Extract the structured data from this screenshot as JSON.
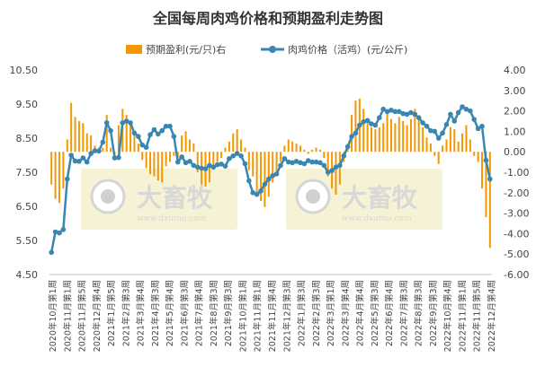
{
  "chart_data": {
    "type": "bar+line",
    "title": "全国每周肉鸡价格和预期盈利走势图",
    "legend": [
      {
        "name": "预期盈利(元/只)右",
        "color": "#F39800",
        "marker": "bar"
      },
      {
        "name": "肉鸡价格（活鸡）(元/公斤)",
        "color": "#3A86B3",
        "marker": "line"
      }
    ],
    "legend_position": "top-center",
    "left_axis": {
      "min": 4.5,
      "max": 10.5,
      "ticks": [
        "10.50",
        "9.50",
        "8.50",
        "7.50",
        "6.50",
        "5.50",
        "4.50"
      ]
    },
    "right_axis": {
      "min": -6.0,
      "max": 4.0,
      "ticks": [
        "4.00",
        "3.00",
        "2.00",
        "1.00",
        "0.00",
        "-1.00",
        "-2.00",
        "-3.00",
        "-4.00",
        "-5.00",
        "-6.00"
      ]
    },
    "x_tick_labels": [
      "2020年10月第1周",
      "2020年11月第1周",
      "2020年11月第5周",
      "2020年12月第4周",
      "2021年1月第5周",
      "2021年2月第3周",
      "2021年3月第4周",
      "2021年4月第3周",
      "2021年5月第4周",
      "2021年6月第3周",
      "2021年7月第4周",
      "2021年8月第3周",
      "2021年9月第3周",
      "2021年10月第1周",
      "2021年11月第1周",
      "2021年11月第4周",
      "2021年12月第3周",
      "2022年1月第3周",
      "2022年2月第3周",
      "2022年3月第1周",
      "2022年3月第4周",
      "2022年4月第4周",
      "2022年5月第3周",
      "2022年6月第4周",
      "2022年7月第3周",
      "2022年8月第3周",
      "2022年9月第3周",
      "2022年10月第4周",
      "2022年11月第1周",
      "2022年11月第5周",
      "2022年12月第4周"
    ],
    "series": [
      {
        "name": "预期盈利(元/只)右",
        "axis": "right",
        "type": "bar",
        "values": [
          -1.6,
          -2.3,
          -2.5,
          -1.8,
          0.6,
          2.4,
          1.7,
          1.5,
          1.4,
          0.9,
          0.8,
          0.3,
          0.2,
          0.2,
          1.8,
          0.2,
          -0.2,
          1.3,
          2.1,
          1.8,
          1.4,
          0.9,
          0.4,
          -0.4,
          -0.8,
          -1.1,
          -1.2,
          -1.4,
          -1.5,
          -0.7,
          -0.5,
          -0.2,
          -0.6,
          0.8,
          1.0,
          0.6,
          0.4,
          -1.0,
          -1.6,
          -1.7,
          -1.5,
          -0.8,
          -0.5,
          -0.3,
          0.2,
          0.5,
          0.9,
          1.1,
          0.6,
          0.2,
          -0.9,
          -1.2,
          -2.0,
          -2.4,
          -2.7,
          -2.2,
          -1.5,
          -1.0,
          -0.5,
          0.3,
          0.6,
          0.5,
          0.4,
          0.3,
          0.1,
          -0.1,
          0.1,
          0.2,
          0.1,
          -0.3,
          -1.2,
          -1.8,
          -2.1,
          -1.6,
          -0.5,
          0.4,
          1.8,
          2.5,
          2.6,
          2.1,
          1.6,
          1.2,
          1.1,
          1.2,
          1.4,
          1.9,
          1.6,
          1.4,
          1.7,
          1.5,
          1.3,
          1.6,
          2.1,
          1.6,
          1.2,
          0.7,
          0.4,
          -0.2,
          -0.6,
          0.3,
          0.6,
          1.2,
          1.1,
          0.5,
          0.9,
          1.3,
          0.6,
          -0.2,
          -0.5,
          -1.8,
          -3.2,
          -4.7
        ]
      },
      {
        "name": "肉鸡价格（活鸡）(元/公斤)",
        "axis": "left",
        "type": "line",
        "values": [
          5.15,
          5.75,
          5.72,
          5.82,
          7.3,
          8.0,
          7.83,
          7.82,
          7.92,
          7.8,
          8.05,
          8.13,
          8.12,
          8.38,
          8.95,
          8.72,
          7.92,
          7.93,
          8.95,
          9.0,
          8.95,
          8.65,
          8.55,
          8.3,
          8.23,
          8.6,
          8.75,
          8.62,
          8.72,
          8.85,
          8.85,
          8.55,
          7.8,
          7.95,
          7.78,
          7.82,
          7.7,
          7.65,
          7.62,
          7.6,
          7.7,
          7.65,
          7.72,
          7.74,
          7.68,
          7.9,
          7.98,
          8.05,
          7.98,
          7.75,
          7.25,
          6.9,
          6.85,
          6.95,
          7.15,
          7.3,
          7.4,
          7.45,
          7.7,
          7.9,
          7.8,
          7.78,
          7.82,
          7.78,
          7.75,
          7.84,
          7.8,
          7.8,
          7.78,
          7.7,
          7.5,
          7.55,
          7.65,
          7.7,
          7.98,
          8.25,
          8.55,
          8.65,
          8.88,
          8.98,
          9.02,
          8.92,
          8.88,
          9.1,
          9.35,
          9.28,
          9.32,
          9.28,
          9.28,
          9.22,
          9.2,
          9.25,
          9.2,
          9.1,
          8.95,
          8.85,
          8.72,
          8.7,
          8.5,
          8.65,
          8.9,
          9.2,
          9.0,
          9.25,
          9.42,
          9.35,
          9.3,
          9.05,
          8.78,
          8.85,
          7.85,
          7.3
        ]
      }
    ],
    "watermark_text": [
      "大畜牧",
      "www.dxumu.com"
    ]
  }
}
